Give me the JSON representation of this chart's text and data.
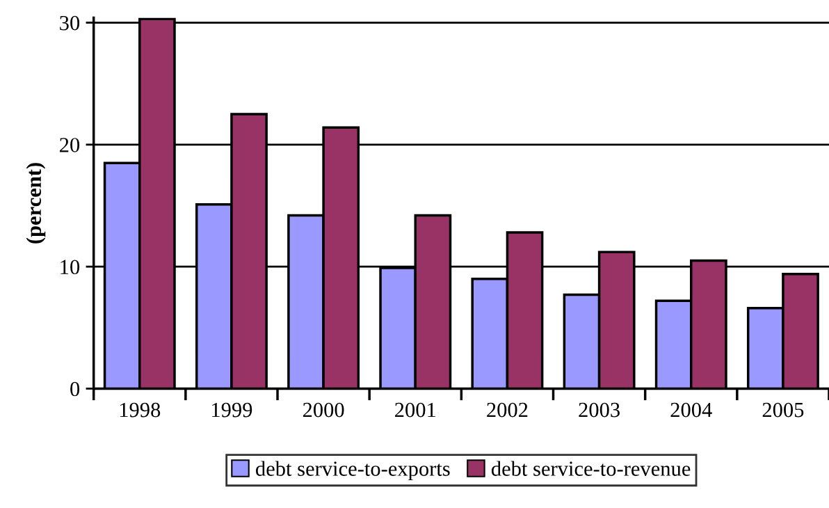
{
  "chart_data": {
    "type": "bar",
    "ylabel": "(percent)",
    "categories": [
      "1998",
      "1999",
      "2000",
      "2001",
      "2002",
      "2003",
      "2004",
      "2005"
    ],
    "series": [
      {
        "name": "debt service-to-exports",
        "color": "#9999ff",
        "values": [
          18.5,
          15.1,
          14.2,
          9.9,
          9.0,
          7.7,
          7.2,
          6.6
        ]
      },
      {
        "name": "debt service-to-revenue",
        "color": "#993366",
        "values": [
          30.3,
          22.5,
          21.4,
          14.2,
          12.8,
          11.2,
          10.5,
          9.4
        ]
      }
    ],
    "ylim": [
      0,
      30.4
    ],
    "yticks": [
      0,
      10,
      20,
      30
    ],
    "grid": "y",
    "legend": "bottom"
  }
}
